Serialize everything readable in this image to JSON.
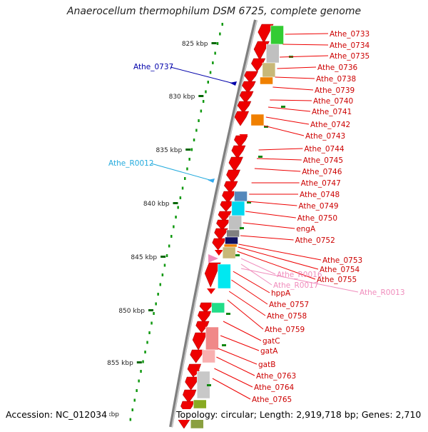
{
  "title": "Anaerocellum thermophilum DSM 6725, complete genome",
  "accession": "Accession: NC_012034",
  "summary": "Topology: circular; Length: 2,919,718 bp; Genes: 2,710",
  "colors": {
    "gene": "#ee0000",
    "gene_label": "#cc0000",
    "rrna_label": "#0088cc",
    "rrna_label_2": "#f08cbc",
    "blue_label": "#0000aa",
    "tick": "#006600",
    "axis": "#808080"
  },
  "ticks": [
    {
      "label": "825 kbp"
    },
    {
      "label": "830 kbp"
    },
    {
      "label": "835 kbp"
    },
    {
      "label": "840 kbp"
    },
    {
      "label": "845 kbp"
    },
    {
      "label": "850 kbp"
    },
    {
      "label": "855 kbp"
    }
  ],
  "gene_labels": [
    "Athe_0733",
    "Athe_0734",
    "Athe_0735",
    "Athe_0736",
    "Athe_0738",
    "Athe_0739",
    "Athe_0740",
    "Athe_0741",
    "Athe_0742",
    "Athe_0743",
    "Athe_0744",
    "Athe_0745",
    "Athe_0746",
    "Athe_0747",
    "Athe_0748",
    "Athe_0749",
    "Athe_0750",
    "engA",
    "Athe_0752",
    "Athe_0753",
    "Athe_0754",
    "Athe_0755",
    "hppA",
    "Athe_0757",
    "Athe_0758",
    "Athe_0759",
    "gatC",
    "gatA",
    "gatB",
    "Athe_0763",
    "Athe_0764",
    "Athe_0765"
  ],
  "pink_labels": [
    "Athe_R0016",
    "Athe_R0017",
    "Athe_R0013"
  ],
  "left_labels": [
    {
      "text": "Athe_0737",
      "color": "#0000aa"
    },
    {
      "text": "Athe_R0012",
      "color": "#22aadd"
    }
  ]
}
